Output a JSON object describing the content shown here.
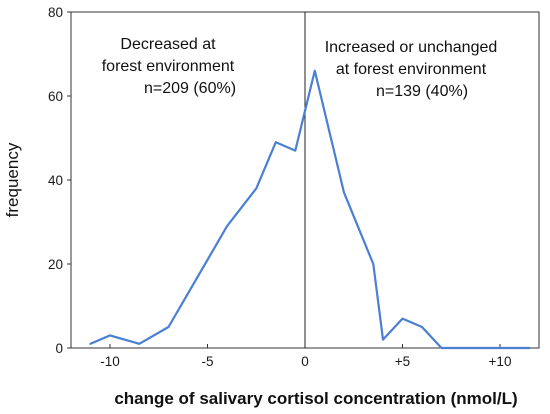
{
  "chart_data": {
    "type": "line",
    "xlabel": "change of salivary cortisol concentration (nmol/L)",
    "ylabel": "frequency",
    "xlim": [
      -12,
      12
    ],
    "ylim": [
      0,
      80
    ],
    "x_ticks": [
      -10,
      -5,
      0,
      5,
      10
    ],
    "x_tick_labels": [
      "-10",
      "-5",
      "0",
      "+5",
      "+10"
    ],
    "y_ticks": [
      0,
      20,
      40,
      60,
      80
    ],
    "y_tick_labels": [
      "0",
      "20",
      "40",
      "60",
      "80"
    ],
    "divider_x": 0,
    "series": [
      {
        "color": "#4a7fd4",
        "x": [
          -11,
          -10,
          -8.5,
          -7,
          -5.5,
          -4,
          -2.5,
          -1.5,
          -0.5,
          0.5,
          2,
          3.5,
          4,
          5,
          6,
          7,
          8.5,
          10,
          11.5
        ],
        "y": [
          1,
          3,
          1,
          5,
          17,
          29,
          38,
          49,
          47,
          66,
          37,
          20,
          2,
          7,
          5,
          0,
          0,
          0,
          0
        ]
      }
    ],
    "annotations": {
      "left": [
        "Decreased at",
        "forest environment",
        "n=209 (60%)"
      ],
      "right": [
        "Increased or unchanged",
        "at forest environment",
        "n=139 (40%)"
      ]
    }
  }
}
